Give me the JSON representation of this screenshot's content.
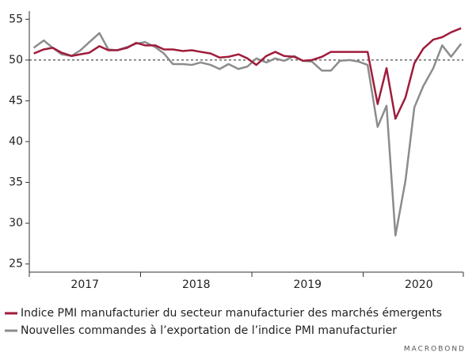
{
  "chart_data": {
    "type": "line",
    "x": [
      2017.04,
      2017.13,
      2017.21,
      2017.29,
      2017.38,
      2017.46,
      2017.54,
      2017.63,
      2017.71,
      2017.79,
      2017.88,
      2017.96,
      2018.04,
      2018.13,
      2018.21,
      2018.29,
      2018.38,
      2018.46,
      2018.54,
      2018.63,
      2018.71,
      2018.79,
      2018.88,
      2018.96,
      2019.04,
      2019.13,
      2019.21,
      2019.29,
      2019.38,
      2019.46,
      2019.54,
      2019.63,
      2019.71,
      2019.79,
      2019.88,
      2019.96,
      2020.04,
      2020.13,
      2020.21,
      2020.29,
      2020.38,
      2020.46,
      2020.54,
      2020.63,
      2020.71,
      2020.79,
      2020.88
    ],
    "series": [
      {
        "name": "Indice PMI manufacturier du secteur manufacturier des marchés émergents",
        "color": "#a01c3c",
        "values": [
          50.8,
          51.3,
          51.5,
          50.9,
          50.5,
          50.7,
          50.9,
          51.7,
          51.2,
          51.2,
          51.5,
          52.1,
          51.8,
          51.8,
          51.3,
          51.3,
          51.1,
          51.2,
          51.0,
          50.8,
          50.3,
          50.4,
          50.7,
          50.2,
          49.4,
          50.5,
          51.0,
          50.5,
          50.4,
          49.9,
          50.0,
          50.4,
          51.0,
          51.0,
          51.0,
          51.0,
          51.0,
          44.6,
          49.0,
          42.8,
          45.4,
          49.6,
          51.4,
          52.5,
          52.8,
          53.4,
          53.9
        ]
      },
      {
        "name": "Nouvelles commandes à l’exportation de l’indice PMI manufacturier",
        "color": "#8c8c8c",
        "values": [
          51.5,
          52.4,
          51.5,
          50.7,
          50.5,
          51.2,
          52.2,
          53.3,
          51.3,
          51.2,
          51.6,
          52.0,
          52.2,
          51.6,
          50.8,
          49.5,
          49.5,
          49.4,
          49.7,
          49.4,
          48.9,
          49.5,
          48.9,
          49.2,
          50.2,
          49.7,
          50.2,
          49.9,
          50.5,
          49.9,
          49.8,
          48.7,
          48.7,
          49.9,
          50.0,
          49.8,
          49.4,
          41.8,
          44.4,
          28.5,
          35.2,
          44.2,
          46.8,
          49.0,
          51.8,
          50.4,
          52.0
        ]
      }
    ],
    "xlim": [
      2017,
      2020.9
    ],
    "xticks": [
      {
        "value": 2017.5,
        "label": "2017"
      },
      {
        "value": 2018.5,
        "label": "2018"
      },
      {
        "value": 2019.5,
        "label": "2019"
      },
      {
        "value": 2020.5,
        "label": "2020"
      }
    ],
    "ylim": [
      24,
      56
    ],
    "yticks": [
      25,
      30,
      35,
      40,
      45,
      50,
      55
    ],
    "reference_line": 50,
    "source": "MACROBOND"
  }
}
